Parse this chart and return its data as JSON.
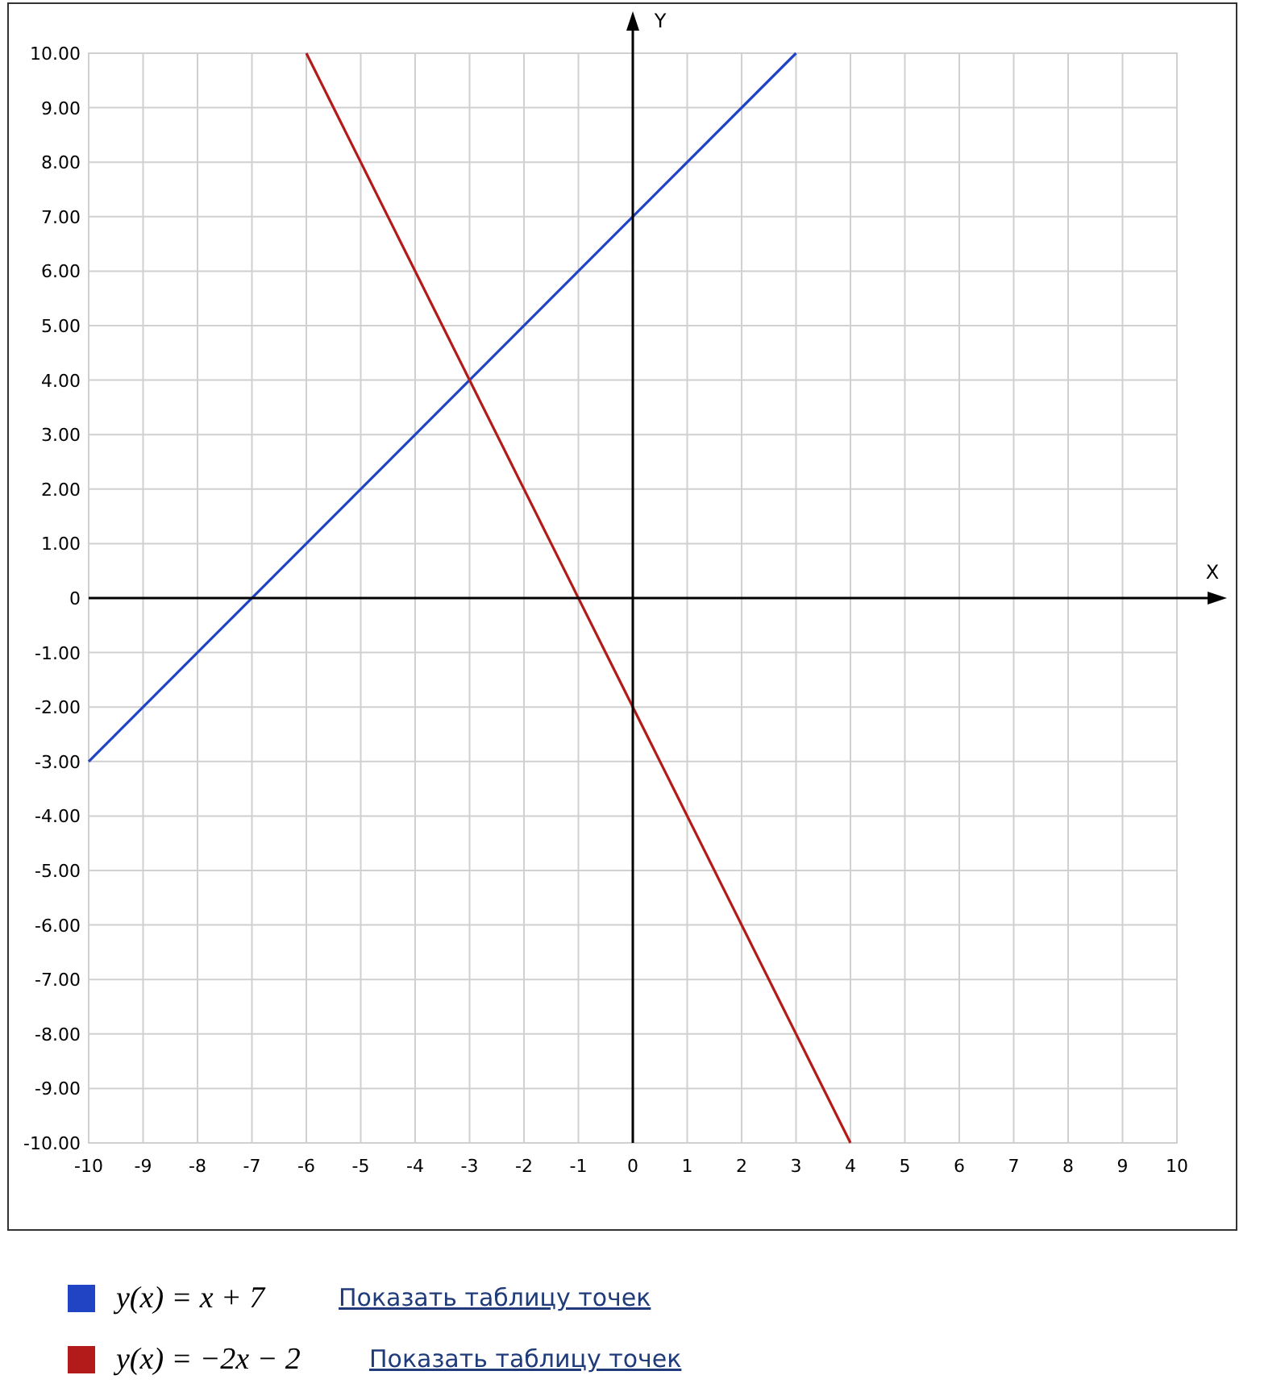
{
  "chart_data": {
    "type": "line",
    "xlabel": "X",
    "ylabel": "Y",
    "series": [
      {
        "name": "y(x) = x + 7",
        "color": "#2144c4",
        "x": [
          -10,
          3
        ],
        "values": [
          -3,
          10
        ]
      },
      {
        "name": "y(x) = −2x − 2",
        "color": "#b31b1b",
        "x": [
          -6,
          4
        ],
        "values": [
          10,
          -10
        ]
      }
    ],
    "xlim": [
      -10,
      10
    ],
    "ylim": [
      -10,
      10
    ],
    "xticks": [
      -10,
      -9,
      -8,
      -7,
      -6,
      -5,
      -4,
      -3,
      -2,
      -1,
      0,
      1,
      2,
      3,
      4,
      5,
      6,
      7,
      8,
      9,
      10
    ],
    "yticks": [
      {
        "value": 10,
        "label": "10.00"
      },
      {
        "value": 9,
        "label": "9.00"
      },
      {
        "value": 8,
        "label": "8.00"
      },
      {
        "value": 7,
        "label": "7.00"
      },
      {
        "value": 6,
        "label": "6.00"
      },
      {
        "value": 5,
        "label": "5.00"
      },
      {
        "value": 4,
        "label": "4.00"
      },
      {
        "value": 3,
        "label": "3.00"
      },
      {
        "value": 2,
        "label": "2.00"
      },
      {
        "value": 1,
        "label": "1.00"
      },
      0,
      {
        "value": -1,
        "label": "-1.00"
      },
      {
        "value": -2,
        "label": "-2.00"
      },
      {
        "value": -3,
        "label": "-3.00"
      },
      {
        "value": -4,
        "label": "-4.00"
      },
      {
        "value": -5,
        "label": "-5.00"
      },
      {
        "value": -6,
        "label": "-6.00"
      },
      {
        "value": -7,
        "label": "-7.00"
      },
      {
        "value": -8,
        "label": "-8.00"
      },
      {
        "value": -9,
        "label": "-9.00"
      },
      {
        "value": -10,
        "label": "-10.00"
      }
    ],
    "grid": true,
    "legend": "bottom",
    "marker": "none",
    "line_style": "solid",
    "annotations": [
      "Показать таблицу точек",
      "Показать таблицу точек"
    ]
  }
}
